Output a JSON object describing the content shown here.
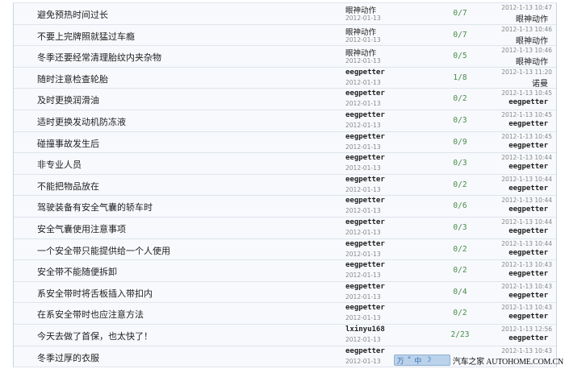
{
  "colors": {
    "reply_count": "#4a8a4a",
    "row_bg": "#f7f9fc",
    "border": "#dfe5ec"
  },
  "topics": [
    {
      "title": "避免预热时间过长",
      "author": "眼神动作",
      "author_date": "2012-01-13",
      "replies": "0/7",
      "last_time": "2012-1-13 10:47",
      "last_user": "眼神动作"
    },
    {
      "title": "不要上完牌照就猛过车瘾",
      "author": "眼神动作",
      "author_date": "2012-01-13",
      "replies": "0/7",
      "last_time": "2012-1-13 10:46",
      "last_user": "眼神动作"
    },
    {
      "title": "冬季还要经常清理胎纹内夹杂物",
      "author": "眼神动作",
      "author_date": "2012-01-13",
      "replies": "0/5",
      "last_time": "2012-1-13 10:46",
      "last_user": "眼神动作"
    },
    {
      "title": "随时注意检查轮胎",
      "author": "eegpetter",
      "author_date": "2012-01-13",
      "replies": "1/8",
      "last_time": "2012-1-13 11:20",
      "last_user": "诺曼"
    },
    {
      "title": "及时更换润滑油",
      "author": "eegpetter",
      "author_date": "2012-01-13",
      "replies": "0/2",
      "last_time": "2012-1-13 10:45",
      "last_user": "eegpetter"
    },
    {
      "title": "适时更换发动机防冻液",
      "author": "eegpetter",
      "author_date": "2012-01-13",
      "replies": "0/3",
      "last_time": "2012-1-13 10:45",
      "last_user": "eegpetter"
    },
    {
      "title": "碰撞事故发生后",
      "author": "eegpetter",
      "author_date": "2012-01-13",
      "replies": "0/9",
      "last_time": "2012-1-13 10:45",
      "last_user": "eegpetter"
    },
    {
      "title": "非专业人员",
      "author": "eegpetter",
      "author_date": "2012-01-13",
      "replies": "0/3",
      "last_time": "2012-1-13 10:44",
      "last_user": "eegpetter"
    },
    {
      "title": "不能把物品放在",
      "author": "eegpetter",
      "author_date": "2012-01-13",
      "replies": "0/2",
      "last_time": "2012-1-13 10:44",
      "last_user": "eegpetter"
    },
    {
      "title": "驾驶装备有安全气囊的轿车时",
      "author": "eegpetter",
      "author_date": "2012-01-13",
      "replies": "0/6",
      "last_time": "2012-1-13 10:44",
      "last_user": "eegpetter"
    },
    {
      "title": "安全气囊使用注意事项",
      "author": "eegpetter",
      "author_date": "2012-01-13",
      "replies": "0/3",
      "last_time": "2012-1-13 10:44",
      "last_user": "eegpetter"
    },
    {
      "title": "一个安全带只能提供给一个人使用",
      "author": "eegpetter",
      "author_date": "2012-01-13",
      "replies": "0/2",
      "last_time": "2012-1-13 10:44",
      "last_user": "eegpetter"
    },
    {
      "title": "安全带不能随便拆卸",
      "author": "eegpetter",
      "author_date": "2012-01-13",
      "replies": "0/2",
      "last_time": "2012-1-13 10:43",
      "last_user": "eegpetter"
    },
    {
      "title": "系安全带时将舌板插入带扣内",
      "author": "eegpetter",
      "author_date": "2012-01-13",
      "replies": "0/4",
      "last_time": "2012-1-13 10:43",
      "last_user": "eegpetter"
    },
    {
      "title": "在系安全带时也应注意方法",
      "author": "eegpetter",
      "author_date": "2012-01-13",
      "replies": "0/2",
      "last_time": "2012-1-13 10:43",
      "last_user": "eegpetter"
    },
    {
      "title": "今天去做了首保，也太快了！",
      "author": "lxinyu168",
      "author_date": "2012-01-13",
      "replies": "2/23",
      "last_time": "2012-1-13 12:56",
      "last_user": "eegpetter"
    },
    {
      "title": "冬季过厚的衣服",
      "author": "eegpetter",
      "author_date": "2012-01-13",
      "replies": "",
      "last_time": "2012-1-13 10:43",
      "last_user": ""
    }
  ],
  "watermark": {
    "text": "汽车之家 AUTOHOME.COM.CN",
    "icons": [
      "万",
      "°",
      "中",
      "☽"
    ]
  }
}
